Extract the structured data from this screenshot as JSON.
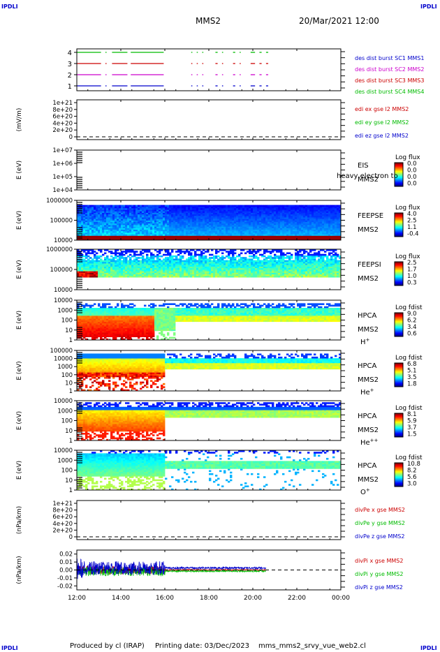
{
  "header": {
    "corner_left": "IPDLI",
    "corner_right": "IPDLI",
    "title": "MMS2",
    "datetime": "20/Mar/2021 12:00"
  },
  "footer": {
    "corner_left": "IPDLI",
    "corner_right": "IPDLI",
    "produced": "Produced by cl (IRAP)",
    "printing": "Printing date: 03/Dec/2023",
    "file": "mms_mms2_srvy_vue_web2.cl"
  },
  "colors": {
    "blue": "#0000cc",
    "magenta": "#cc00cc",
    "red": "#cc0000",
    "green": "#00bb00",
    "black": "#000000"
  },
  "chart_data": {
    "type": "multi-panel",
    "xlim_hours": [
      12,
      24
    ],
    "x_ticks": [
      {
        "v": 12,
        "l": "12:00"
      },
      {
        "v": 14,
        "l": "14:00"
      },
      {
        "v": 16,
        "l": "16:00"
      },
      {
        "v": 18,
        "l": "18:00"
      },
      {
        "v": 20,
        "l": "20:00"
      },
      {
        "v": 22,
        "l": "22:00"
      },
      {
        "v": 24,
        "l": "00:00"
      }
    ],
    "panels": [
      {
        "id": "burst",
        "kind": "burst",
        "yticks": [
          "4",
          "3",
          "2",
          "1"
        ],
        "series": [
          {
            "name": "des dist burst SC1 MMS1",
            "color": "#0000cc",
            "level": 1
          },
          {
            "name": "des dist burst SC2 MMS2",
            "color": "#cc00cc",
            "level": 2
          },
          {
            "name": "des dist burst SC3 MMS3",
            "color": "#cc0000",
            "level": 3
          },
          {
            "name": "des dist burst SC4 MMS4",
            "color": "#00bb00",
            "level": 4
          }
        ],
        "intervals_hours": [
          [
            12.0,
            13.1
          ],
          [
            13.3,
            13.35
          ],
          [
            13.6,
            14.3
          ],
          [
            14.45,
            15.95
          ],
          [
            17.2,
            17.25
          ],
          [
            17.45,
            17.5
          ],
          [
            17.7,
            17.75
          ],
          [
            18.3,
            18.4
          ],
          [
            18.6,
            18.65
          ],
          [
            19.1,
            19.2
          ],
          [
            19.4,
            19.45
          ],
          [
            19.9,
            20.1
          ],
          [
            20.3,
            20.4
          ],
          [
            20.6,
            20.7
          ]
        ]
      },
      {
        "id": "edi",
        "kind": "line",
        "ylabel": "(mV/m)",
        "yticks": [
          "1e+21",
          "8e+20",
          "6e+20",
          "4e+20",
          "2e+20",
          "0"
        ],
        "series": [
          {
            "name": "edi ex gse l2 MMS2",
            "color": "#cc0000"
          },
          {
            "name": "edi ey gse l2 MMS2",
            "color": "#00bb00"
          },
          {
            "name": "edi ez gse l2 MMS2",
            "color": "#0000cc"
          }
        ]
      },
      {
        "id": "eis",
        "kind": "spec",
        "ylabel": "E (eV)",
        "yticks": [
          "1e+07",
          "1e+06",
          "1e+05",
          "1e+04"
        ],
        "instrument": [
          "EIS",
          "MMS2"
        ],
        "overlay": "heavy electron to",
        "cbar_title": "Log flux",
        "cbar_ticks": [
          "0.0",
          "0.0",
          "0.0",
          "0.0"
        ],
        "pattern": "empty"
      },
      {
        "id": "feepse",
        "kind": "spec",
        "ylabel": "E (eV)",
        "yticks": [
          "1000000",
          "100000",
          "10000"
        ],
        "instrument": [
          "FEEPSE",
          "MMS2"
        ],
        "cbar_title": "Log flux",
        "cbar_ticks": [
          "4.0",
          "2.5",
          "1.1",
          "-0.4"
        ],
        "pattern": "feepse"
      },
      {
        "id": "feepsi",
        "kind": "spec",
        "ylabel": "E (eV)",
        "yticks": [
          "1000000",
          "100000",
          "10000"
        ],
        "instrument": [
          "FEEPSI",
          "MMS2"
        ],
        "cbar_title": "Log flux",
        "cbar_ticks": [
          "2.5",
          "1.7",
          "1.0",
          "0.3"
        ],
        "pattern": "feepsi"
      },
      {
        "id": "hpca_h",
        "kind": "spec",
        "ylabel": "E (eV)",
        "yticks": [
          "10000",
          "1000",
          "100",
          "10",
          "1"
        ],
        "instrument": [
          "HPCA",
          "MMS2"
        ],
        "species": "H",
        "species_sup": "+",
        "cbar_title": "Log fdist",
        "cbar_ticks": [
          "9.0",
          "6.2",
          "3.4",
          "0.6"
        ],
        "pattern": "hpca_h"
      },
      {
        "id": "hpca_he1",
        "kind": "spec",
        "ylabel": "E (eV)",
        "yticks": [
          "100000",
          "10000",
          "1000",
          "100",
          "10",
          "1"
        ],
        "instrument": [
          "HPCA",
          "MMS2"
        ],
        "species": "He",
        "species_sup": "+",
        "cbar_title": "Log fdist",
        "cbar_ticks": [
          "6.8",
          "5.1",
          "3.5",
          "1.8"
        ],
        "pattern": "hpca_he1"
      },
      {
        "id": "hpca_he2",
        "kind": "spec",
        "ylabel": "E (eV)",
        "yticks": [
          "10000",
          "1000",
          "100",
          "10",
          "1"
        ],
        "instrument": [
          "HPCA",
          "MMS2"
        ],
        "species": "He",
        "species_sup": "++",
        "cbar_title": "Log fdist",
        "cbar_ticks": [
          "8.1",
          "5.9",
          "3.7",
          "1.5"
        ],
        "pattern": "hpca_he2"
      },
      {
        "id": "hpca_o",
        "kind": "spec",
        "ylabel": "E (eV)",
        "yticks": [
          "10000",
          "1000",
          "100",
          "10",
          "1"
        ],
        "instrument": [
          "HPCA",
          "MMS2"
        ],
        "species": "O",
        "species_sup": "+",
        "cbar_title": "Log fdist",
        "cbar_ticks": [
          "10.8",
          "8.2",
          "5.6",
          "3.0"
        ],
        "pattern": "hpca_o"
      },
      {
        "id": "divpe",
        "kind": "line",
        "ylabel": "(nPa/km)",
        "yticks": [
          "1e+21",
          "8e+20",
          "6e+20",
          "4e+20",
          "2e+20",
          "0"
        ],
        "series": [
          {
            "name": "divPe x gse MMS2",
            "color": "#cc0000"
          },
          {
            "name": "divPe y gse MMS2",
            "color": "#00bb00"
          },
          {
            "name": "divPe z gse MMS2",
            "color": "#0000cc"
          }
        ]
      },
      {
        "id": "divpi",
        "kind": "noise",
        "ylabel": "(nPa/km)",
        "yticks": [
          "0.02",
          "0.01",
          "0.00",
          "-0.01",
          "-0.02"
        ],
        "ylim": [
          -0.025,
          0.025
        ],
        "series": [
          {
            "name": "divPi x gse MMS2",
            "color": "#cc0000"
          },
          {
            "name": "divPi y gse MMS2",
            "color": "#00bb00"
          },
          {
            "name": "divPi z gse MMS2",
            "color": "#0000cc"
          }
        ]
      }
    ]
  }
}
